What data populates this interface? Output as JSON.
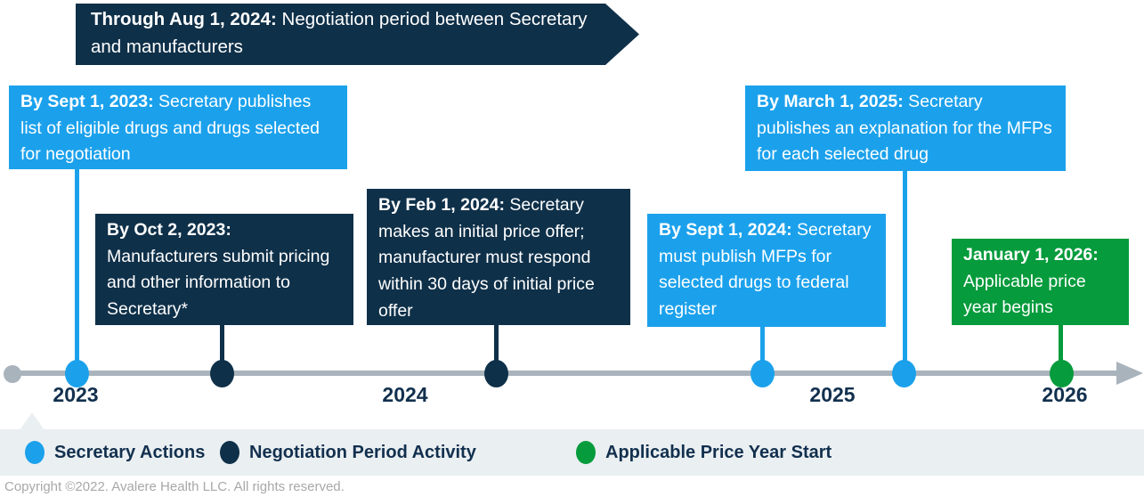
{
  "palette": {
    "blue": "#1BA1EC",
    "navy": "#0F3049",
    "green": "#069B3C",
    "line": "#A9B3BC",
    "band": "#EAEFF2",
    "ink": "#12304E",
    "muted": "#A8A8A8"
  },
  "banner": {
    "date": "Through Aug 1, 2024:",
    "text": " Negotiation period between Secretary and manufacturers"
  },
  "milestones": [
    {
      "date": "By Sept 1, 2023:",
      "text": " Secretary publishes list of eligible drugs and drugs selected for negotiation",
      "type": "secretary-action"
    },
    {
      "date": "By Oct 2, 2023:",
      "text": " Manufacturers submit pricing and other information to Secretary*",
      "type": "negotiation-period"
    },
    {
      "date": "By Feb 1, 2024:",
      "text": " Secretary makes an initial price offer; manufacturer must respond within 30 days of initial price offer",
      "type": "negotiation-period"
    },
    {
      "date": "By Sept 1, 2024:",
      "text": " Secretary must publish MFPs for selected drugs to federal register",
      "type": "secretary-action"
    },
    {
      "date": "By March 1, 2025:",
      "text": " Secretary publishes an explanation for the MFPs for each selected drug",
      "type": "secretary-action"
    },
    {
      "date": "January 1, 2026:",
      "text": " Applicable price year begins",
      "type": "price-year-start"
    }
  ],
  "timeline": {
    "years": [
      "2023",
      "2024",
      "2025",
      "2026"
    ]
  },
  "legend": [
    {
      "label": "Secretary Actions",
      "type": "secretary-action"
    },
    {
      "label": "Negotiation Period Activity",
      "type": "negotiation-period"
    },
    {
      "label": "Applicable Price Year Start",
      "type": "price-year-start"
    }
  ],
  "footer": {
    "copyright": "Copyright ©2022. Avalere Health LLC. All rights reserved."
  }
}
